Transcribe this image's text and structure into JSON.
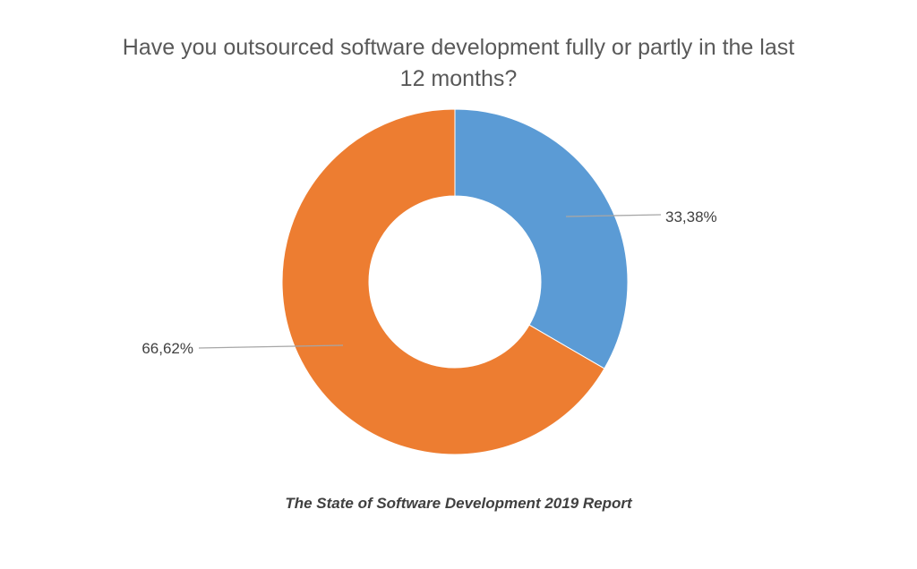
{
  "chart_data": {
    "type": "pie",
    "variant": "donut",
    "title": "Have you outsourced software development fully or partly in the last 12 months?",
    "title_lines": [
      "Have you outsourced software development fully or partly in the last",
      "12 months?"
    ],
    "caption": "The State of Software Development 2019 Report",
    "slices": [
      {
        "value": 33.38,
        "label": "33,38%",
        "color": "#5B9BD5"
      },
      {
        "value": 66.62,
        "label": "66,62%",
        "color": "#ED7D31"
      }
    ],
    "legend": "none"
  }
}
